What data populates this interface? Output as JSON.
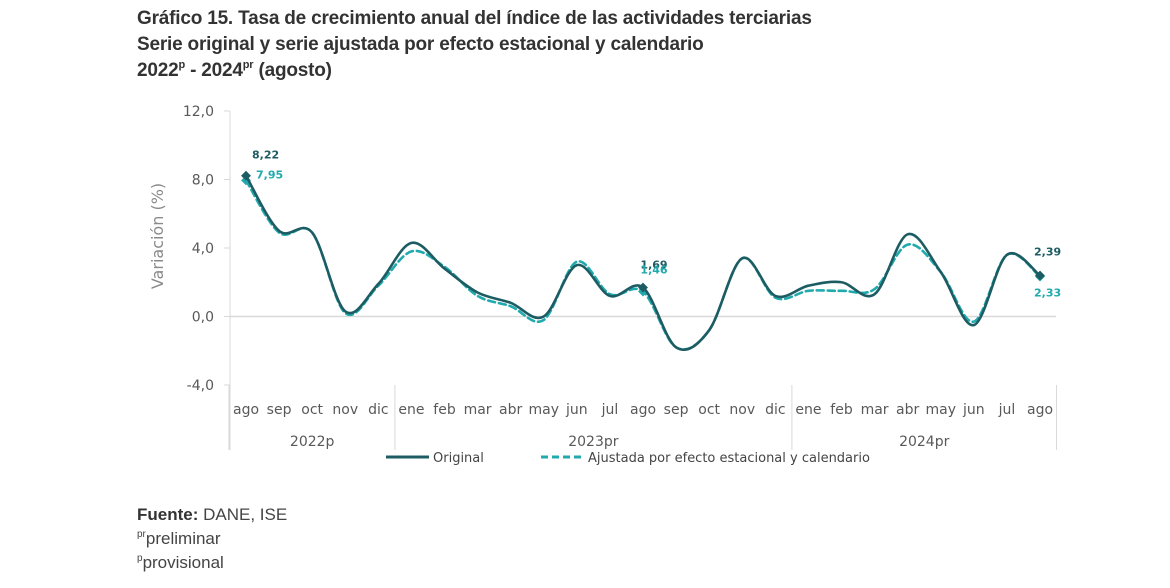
{
  "title": {
    "line1": "Gráfico 15. Tasa de crecimiento anual del índice de las actividades terciarias",
    "line2": "Serie original y serie ajustada por efecto estacional y calendario",
    "line3_a": "2022",
    "line3_a_sup": "p",
    "line3_b": " - 2024",
    "line3_b_sup": "pr",
    "line3_c": " (agosto)"
  },
  "footer": {
    "source_label": "Fuente:",
    "source_value": " DANE, ISE",
    "note1_sup": "pr",
    "note1": "preliminar",
    "note2_sup": "p",
    "note2": "provisional"
  },
  "colors": {
    "original": "#1d5c63",
    "ajustada": "#21aaad",
    "grid": "#d9d9d9",
    "axis_text": "#595959"
  },
  "chart_data": {
    "type": "line",
    "title": "Tasa de crecimiento anual del índice de las actividades terciarias",
    "xlabel": "",
    "ylabel": "Variación (%)",
    "ylim": [
      -4,
      12
    ],
    "yticks": [
      -4,
      0,
      4,
      8,
      12
    ],
    "ytick_labels": [
      "-4,0",
      "0,0",
      "4,0",
      "8,0",
      "12,0"
    ],
    "grid": "y=0 baseline only",
    "legend_position": "bottom-center",
    "categories": [
      "ago",
      "sep",
      "oct",
      "nov",
      "dic",
      "ene",
      "feb",
      "mar",
      "abr",
      "may",
      "jun",
      "jul",
      "ago",
      "sep",
      "oct",
      "nov",
      "dic",
      "ene",
      "feb",
      "mar",
      "abr",
      "may",
      "jun",
      "jul",
      "ago"
    ],
    "groups": [
      {
        "label": "2022p",
        "start": 0,
        "end": 4
      },
      {
        "label": "2023pr",
        "start": 5,
        "end": 16
      },
      {
        "label": "2024pr",
        "start": 17,
        "end": 24
      }
    ],
    "series": [
      {
        "name": "Original",
        "style": "solid",
        "values": [
          8.22,
          5.0,
          4.9,
          0.3,
          1.9,
          4.3,
          2.8,
          1.4,
          0.8,
          0.0,
          3.0,
          1.2,
          1.69,
          -1.8,
          -0.8,
          3.4,
          1.2,
          1.8,
          2.0,
          1.3,
          4.8,
          2.6,
          -0.5,
          3.6,
          2.39
        ],
        "labels": [
          {
            "index": 0,
            "text": "8,22"
          },
          {
            "index": 12,
            "text": "1,69"
          },
          {
            "index": 24,
            "text": "2,39"
          }
        ]
      },
      {
        "name": "Ajustada por efecto estacional y calendario",
        "style": "dashed",
        "values": [
          7.95,
          4.9,
          4.9,
          0.2,
          1.8,
          3.8,
          2.9,
          1.2,
          0.6,
          -0.2,
          3.2,
          1.3,
          1.46,
          -1.8,
          -0.8,
          3.4,
          1.1,
          1.5,
          1.5,
          1.6,
          4.2,
          2.6,
          -0.3,
          3.6,
          2.33
        ],
        "labels": [
          {
            "index": 0,
            "text": "7,95"
          },
          {
            "index": 12,
            "text": "1,46"
          },
          {
            "index": 24,
            "text": "2,33"
          }
        ]
      }
    ]
  }
}
